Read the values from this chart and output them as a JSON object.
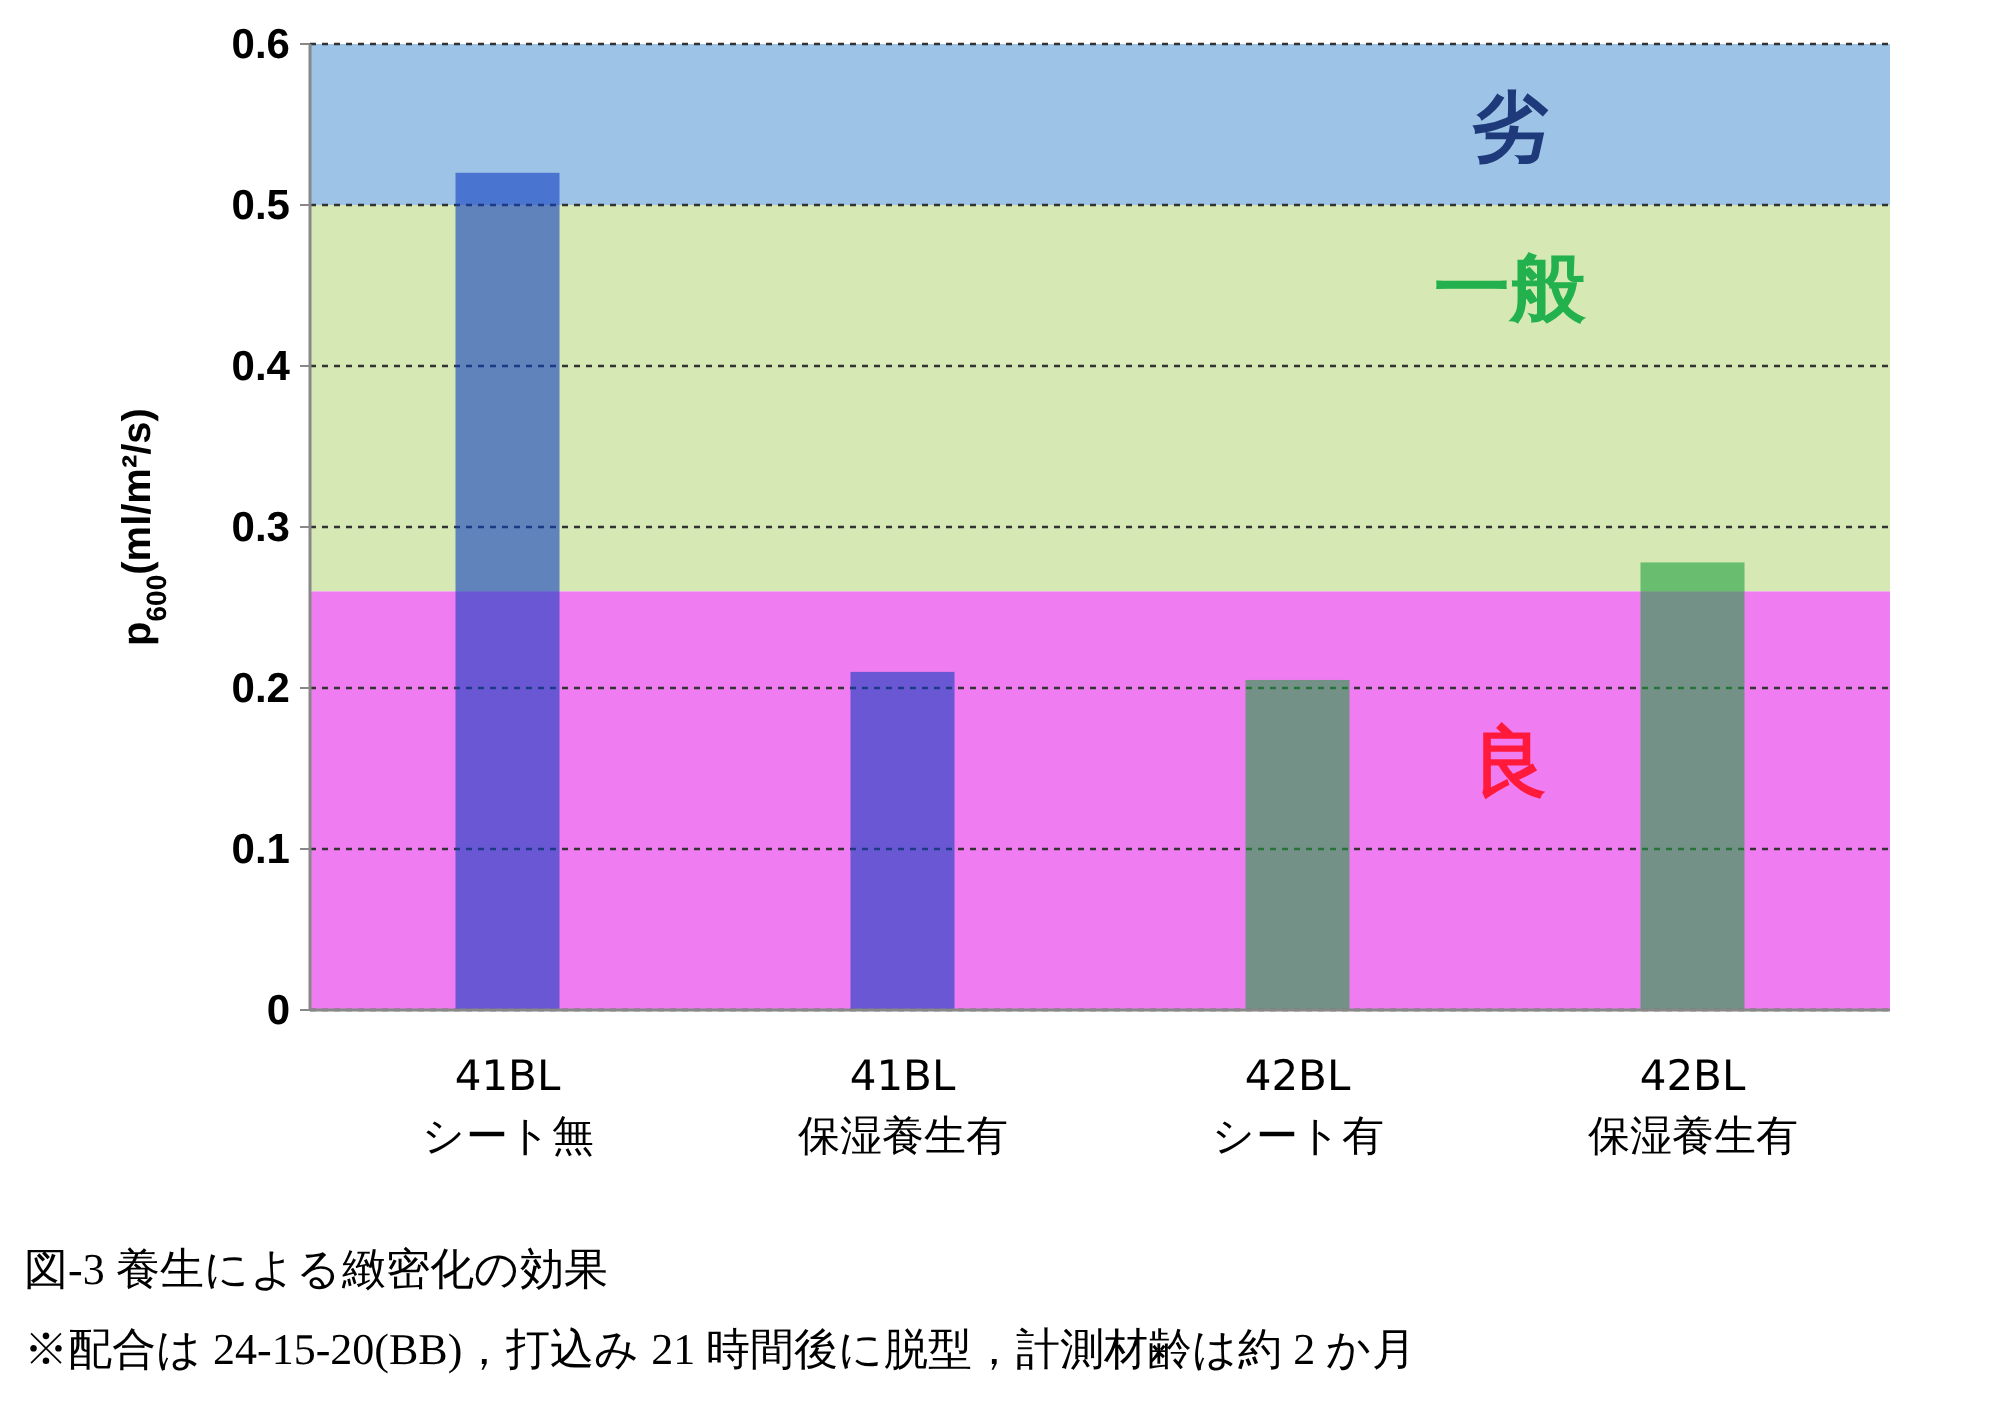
{
  "chart_data": {
    "type": "bar",
    "categories": [
      "41BL\nシート無",
      "41BL\n保湿養生有",
      "42BL\nシート有",
      "42BL\n保湿養生有"
    ],
    "values": [
      0.52,
      0.21,
      0.205,
      0.278
    ],
    "colors": [
      "#1040c0",
      "#1040c0",
      "#20a040",
      "#20a040"
    ],
    "ylabel": "p$_{600}$(ml/m²/s)",
    "ylim": [
      0,
      0.6
    ],
    "yticks": [
      0,
      0.1,
      0.2,
      0.3,
      0.4,
      0.5,
      0.6
    ],
    "grid": "y",
    "bands": [
      {
        "axis": "y",
        "from": 0.5,
        "to": 0.6,
        "label": "劣",
        "color": "#9dc3e6"
      },
      {
        "axis": "y",
        "from": 0.26,
        "to": 0.5,
        "label": "一般",
        "color": "#d6e9b4"
      },
      {
        "axis": "y",
        "from": 0,
        "to": 0.26,
        "label": "良",
        "color": "#f07cf2"
      }
    ],
    "annotations": [
      "図-3 養生による緻密化の効果",
      "※配合は 24-15-20(BB)，打込み 21 時間後に脱型，計測材齢は約 2 か月"
    ]
  }
}
